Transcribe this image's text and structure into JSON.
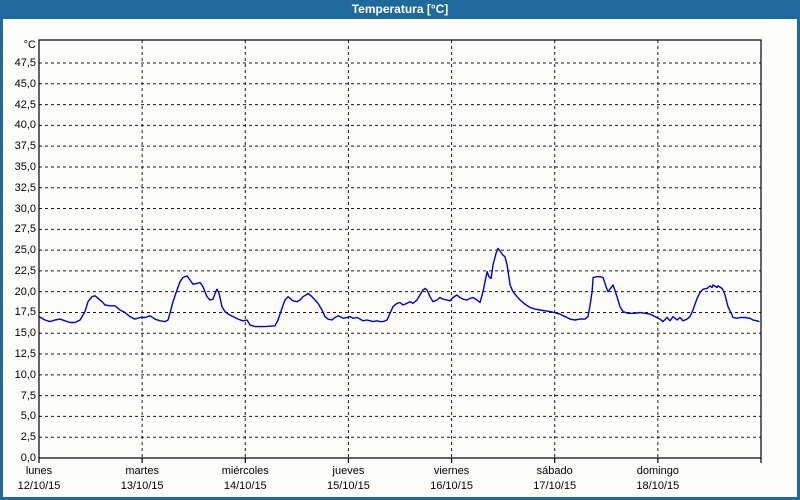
{
  "window": {
    "title": "Temperatura [°C]"
  },
  "colors": {
    "titlebar": "#1f6a9d",
    "frame": "#1f6a9d",
    "background": "#fcfdfb",
    "title_text": "#ffffff",
    "plot_border": "#000000",
    "grid": "#1a1a1a",
    "text": "#000000",
    "line": "#0000cd"
  },
  "chart_data": {
    "type": "line",
    "title": "Temperatura [°C]",
    "xlabel": "",
    "ylabel": "°C",
    "ylim": [
      0,
      47.5
    ],
    "ytick_step": 2.5,
    "grid": true,
    "legend": "none",
    "yticks": [
      {
        "v": 0,
        "label": "0,0"
      },
      {
        "v": 2.5,
        "label": "2,5"
      },
      {
        "v": 5,
        "label": "5,0"
      },
      {
        "v": 7.5,
        "label": "7,5"
      },
      {
        "v": 10,
        "label": "10,0"
      },
      {
        "v": 12.5,
        "label": "12,5"
      },
      {
        "v": 15,
        "label": "15,0"
      },
      {
        "v": 17.5,
        "label": "17,5"
      },
      {
        "v": 20,
        "label": "20,0"
      },
      {
        "v": 22.5,
        "label": "22,5"
      },
      {
        "v": 25,
        "label": "25,0"
      },
      {
        "v": 27.5,
        "label": "27,5"
      },
      {
        "v": 30,
        "label": "30,0"
      },
      {
        "v": 32.5,
        "label": "32,5"
      },
      {
        "v": 35,
        "label": "35,0"
      },
      {
        "v": 37.5,
        "label": "37,5"
      },
      {
        "v": 40,
        "label": "40,0"
      },
      {
        "v": 42.5,
        "label": "42,5"
      },
      {
        "v": 45,
        "label": "45,0"
      },
      {
        "v": 47.5,
        "label": "47,5"
      }
    ],
    "x_categories": [
      {
        "day": "lunes",
        "date": "12/10/15"
      },
      {
        "day": "martes",
        "date": "13/10/15"
      },
      {
        "day": "miércoles",
        "date": "14/10/15"
      },
      {
        "day": "jueves",
        "date": "15/10/15"
      },
      {
        "day": "viernes",
        "date": "16/10/15"
      },
      {
        "day": "sábado",
        "date": "17/10/15"
      },
      {
        "day": "domingo",
        "date": "18/10/15"
      }
    ],
    "series": [
      {
        "name": "Temperatura",
        "color": "#0000cd",
        "x_unit": "days_from_12_10_15",
        "points": [
          [
            0.0,
            17.0
          ],
          [
            0.058,
            16.6
          ],
          [
            0.107,
            16.4
          ],
          [
            0.155,
            16.6
          ],
          [
            0.204,
            16.7
          ],
          [
            0.252,
            16.5
          ],
          [
            0.301,
            16.3
          ],
          [
            0.349,
            16.3
          ],
          [
            0.398,
            16.6
          ],
          [
            0.446,
            17.6
          ],
          [
            0.475,
            18.8
          ],
          [
            0.514,
            19.4
          ],
          [
            0.543,
            19.5
          ],
          [
            0.572,
            19.2
          ],
          [
            0.611,
            18.8
          ],
          [
            0.64,
            18.4
          ],
          [
            0.688,
            18.3
          ],
          [
            0.737,
            18.3
          ],
          [
            0.785,
            17.8
          ],
          [
            0.834,
            17.5
          ],
          [
            0.882,
            17.0
          ],
          [
            0.931,
            16.7
          ],
          [
            0.979,
            16.9
          ],
          [
            1.028,
            16.9
          ],
          [
            1.076,
            17.1
          ],
          [
            1.125,
            16.7
          ],
          [
            1.173,
            16.5
          ],
          [
            1.222,
            16.4
          ],
          [
            1.251,
            16.6
          ],
          [
            1.27,
            17.4
          ],
          [
            1.299,
            18.8
          ],
          [
            1.338,
            20.2
          ],
          [
            1.367,
            21.2
          ],
          [
            1.396,
            21.7
          ],
          [
            1.435,
            21.9
          ],
          [
            1.464,
            21.4
          ],
          [
            1.493,
            20.9
          ],
          [
            1.532,
            21.0
          ],
          [
            1.561,
            21.1
          ],
          [
            1.59,
            20.6
          ],
          [
            1.629,
            19.4
          ],
          [
            1.658,
            19.0
          ],
          [
            1.687,
            19.1
          ],
          [
            1.707,
            19.8
          ],
          [
            1.726,
            20.3
          ],
          [
            1.745,
            19.8
          ],
          [
            1.774,
            18.2
          ],
          [
            1.803,
            17.6
          ],
          [
            1.833,
            17.3
          ],
          [
            1.881,
            17.0
          ],
          [
            1.93,
            16.7
          ],
          [
            1.978,
            16.5
          ],
          [
            2.017,
            16.6
          ],
          [
            2.046,
            16.0
          ],
          [
            2.094,
            15.8
          ],
          [
            2.191,
            15.8
          ],
          [
            2.288,
            15.9
          ],
          [
            2.317,
            16.6
          ],
          [
            2.356,
            18.0
          ],
          [
            2.385,
            19.0
          ],
          [
            2.414,
            19.4
          ],
          [
            2.434,
            19.2
          ],
          [
            2.463,
            18.9
          ],
          [
            2.502,
            18.8
          ],
          [
            2.531,
            19.0
          ],
          [
            2.56,
            19.4
          ],
          [
            2.599,
            19.7
          ],
          [
            2.608,
            19.8
          ],
          [
            2.647,
            19.4
          ],
          [
            2.676,
            19.0
          ],
          [
            2.705,
            18.6
          ],
          [
            2.744,
            17.8
          ],
          [
            2.773,
            17.0
          ],
          [
            2.802,
            16.7
          ],
          [
            2.841,
            16.6
          ],
          [
            2.87,
            16.9
          ],
          [
            2.899,
            17.1
          ],
          [
            2.919,
            17.0
          ],
          [
            2.948,
            16.8
          ],
          [
            2.986,
            16.9
          ],
          [
            3.016,
            17.0
          ],
          [
            3.045,
            16.8
          ],
          [
            3.083,
            16.9
          ],
          [
            3.113,
            16.7
          ],
          [
            3.142,
            16.5
          ],
          [
            3.18,
            16.6
          ],
          [
            3.209,
            16.5
          ],
          [
            3.239,
            16.4
          ],
          [
            3.277,
            16.5
          ],
          [
            3.306,
            16.4
          ],
          [
            3.335,
            16.4
          ],
          [
            3.374,
            16.6
          ],
          [
            3.403,
            17.4
          ],
          [
            3.432,
            18.2
          ],
          [
            3.471,
            18.6
          ],
          [
            3.5,
            18.7
          ],
          [
            3.529,
            18.4
          ],
          [
            3.568,
            18.6
          ],
          [
            3.597,
            18.8
          ],
          [
            3.626,
            18.6
          ],
          [
            3.665,
            19.0
          ],
          [
            3.694,
            19.6
          ],
          [
            3.723,
            20.2
          ],
          [
            3.743,
            20.4
          ],
          [
            3.762,
            20.2
          ],
          [
            3.791,
            19.4
          ],
          [
            3.82,
            18.8
          ],
          [
            3.859,
            19.0
          ],
          [
            3.888,
            19.3
          ],
          [
            3.917,
            19.1
          ],
          [
            3.956,
            19.0
          ],
          [
            3.985,
            18.9
          ],
          [
            4.014,
            19.3
          ],
          [
            4.053,
            19.6
          ],
          [
            4.082,
            19.3
          ],
          [
            4.111,
            19.1
          ],
          [
            4.15,
            19.0
          ],
          [
            4.179,
            19.2
          ],
          [
            4.208,
            19.3
          ],
          [
            4.247,
            19.0
          ],
          [
            4.276,
            18.7
          ],
          [
            4.305,
            20.0
          ],
          [
            4.344,
            22.4
          ],
          [
            4.363,
            21.8
          ],
          [
            4.383,
            21.6
          ],
          [
            4.402,
            23.2
          ],
          [
            4.431,
            24.6
          ],
          [
            4.45,
            25.2
          ],
          [
            4.47,
            24.9
          ],
          [
            4.499,
            24.4
          ],
          [
            4.518,
            24.2
          ],
          [
            4.538,
            23.2
          ],
          [
            4.567,
            20.8
          ],
          [
            4.596,
            20.0
          ],
          [
            4.635,
            19.4
          ],
          [
            4.664,
            19.0
          ],
          [
            4.712,
            18.5
          ],
          [
            4.761,
            18.1
          ],
          [
            4.809,
            17.9
          ],
          [
            4.858,
            17.8
          ],
          [
            4.906,
            17.7
          ],
          [
            4.955,
            17.6
          ],
          [
            4.994,
            17.5
          ],
          [
            5.023,
            17.4
          ],
          [
            5.052,
            17.3
          ],
          [
            5.081,
            17.1
          ],
          [
            5.12,
            16.9
          ],
          [
            5.149,
            16.7
          ],
          [
            5.197,
            16.6
          ],
          [
            5.246,
            16.7
          ],
          [
            5.294,
            16.7
          ],
          [
            5.323,
            17.0
          ],
          [
            5.343,
            18.4
          ],
          [
            5.362,
            20.0
          ],
          [
            5.372,
            21.7
          ],
          [
            5.411,
            21.8
          ],
          [
            5.44,
            21.8
          ],
          [
            5.469,
            21.7
          ],
          [
            5.498,
            20.6
          ],
          [
            5.517,
            20.0
          ],
          [
            5.566,
            20.8
          ],
          [
            5.604,
            19.4
          ],
          [
            5.633,
            18.2
          ],
          [
            5.663,
            17.6
          ],
          [
            5.711,
            17.4
          ],
          [
            5.779,
            17.4
          ],
          [
            5.827,
            17.5
          ],
          [
            5.876,
            17.4
          ],
          [
            5.924,
            17.3
          ],
          [
            5.973,
            17.0
          ],
          [
            6.002,
            16.8
          ],
          [
            6.021,
            16.7
          ],
          [
            6.05,
            16.4
          ],
          [
            6.089,
            16.9
          ],
          [
            6.118,
            16.5
          ],
          [
            6.147,
            17.0
          ],
          [
            6.186,
            16.6
          ],
          [
            6.215,
            16.9
          ],
          [
            6.244,
            16.5
          ],
          [
            6.283,
            16.7
          ],
          [
            6.312,
            17.0
          ],
          [
            6.341,
            17.8
          ],
          [
            6.38,
            19.2
          ],
          [
            6.409,
            19.9
          ],
          [
            6.438,
            20.3
          ],
          [
            6.477,
            20.4
          ],
          [
            6.506,
            20.7
          ],
          [
            6.525,
            20.5
          ],
          [
            6.535,
            20.8
          ],
          [
            6.574,
            20.5
          ],
          [
            6.583,
            20.7
          ],
          [
            6.622,
            20.4
          ],
          [
            6.632,
            20.2
          ],
          [
            6.651,
            19.6
          ],
          [
            6.68,
            18.2
          ],
          [
            6.719,
            17.2
          ],
          [
            6.729,
            16.9
          ],
          [
            6.767,
            16.8
          ],
          [
            6.796,
            16.9
          ],
          [
            6.845,
            16.9
          ],
          [
            6.893,
            16.8
          ],
          [
            6.922,
            16.6
          ],
          [
            6.961,
            16.5
          ],
          [
            6.98,
            16.4
          ]
        ]
      }
    ]
  }
}
